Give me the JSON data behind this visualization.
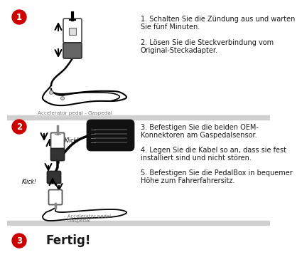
{
  "bg_color": "#ffffff",
  "section_divider_color": "#d0d0d0",
  "circle_color": "#cc0000",
  "circle_text_color": "#ffffff",
  "text_color": "#1a1a1a",
  "section1": {
    "number": "1",
    "text1": "1. Schalten Sie die Zündung aus und warten",
    "text2": "Sie fünf Minuten.",
    "text3": "2. Lösen Sie die Steckverbindung vom",
    "text4": "Original-Steckadapter.",
    "caption": "Accelerator pedal - Gaspedal"
  },
  "section2": {
    "number": "2",
    "text1": "3. Befestigen Sie die beiden OEM-",
    "text2": "Konnektoren am Gaspedalsensor.",
    "text3": "4. Legen Sie die Kabel so an, dass sie fest",
    "text4": "installiert sind und nicht stören.",
    "text5": "5. Befestigen Sie die PedalBox in bequemer",
    "text6": "Höhe zum Fahrerfahrersitz.",
    "klick1": "Klick!",
    "klick2": "Klick!",
    "caption1": "- Accelerator pedal",
    "caption2": "- Gaspedal"
  },
  "section3": {
    "number": "3",
    "text": "Fertig!"
  }
}
